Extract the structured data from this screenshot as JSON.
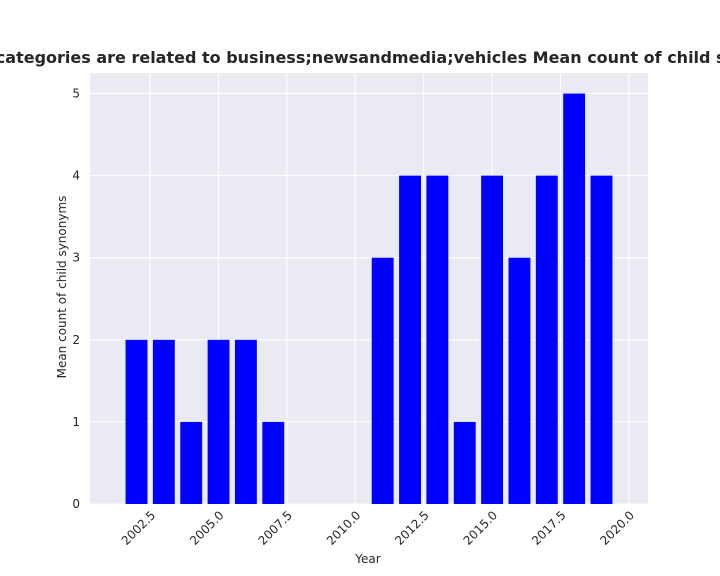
{
  "chart_data": {
    "type": "bar",
    "title": "Privacy policies which data categories are related to business;newsandmedia;vehicles Mean count of child synonyms in privacy policies",
    "xlabel": "Year",
    "ylabel": "Mean count of child synonyms",
    "x": [
      2002,
      2003,
      2004,
      2005,
      2006,
      2007,
      2011,
      2012,
      2013,
      2014,
      2015,
      2016,
      2017,
      2018,
      2019
    ],
    "values": [
      2,
      2,
      1,
      2,
      2,
      1,
      3,
      4,
      4,
      1,
      4,
      3,
      4,
      5,
      4
    ],
    "xlim": [
      2000.3,
      2020.7
    ],
    "ylim": [
      0,
      5.25
    ],
    "xticks": [
      "2002.5",
      "2005.0",
      "2007.5",
      "2010.0",
      "2012.5",
      "2015.0",
      "2017.5",
      "2020.0"
    ],
    "yticks": [
      "0",
      "1",
      "2",
      "3",
      "4",
      "5"
    ],
    "grid": true,
    "colors": {
      "bar": "#0000ff",
      "background": "#eaeaf2",
      "grid": "#ffffff"
    }
  }
}
